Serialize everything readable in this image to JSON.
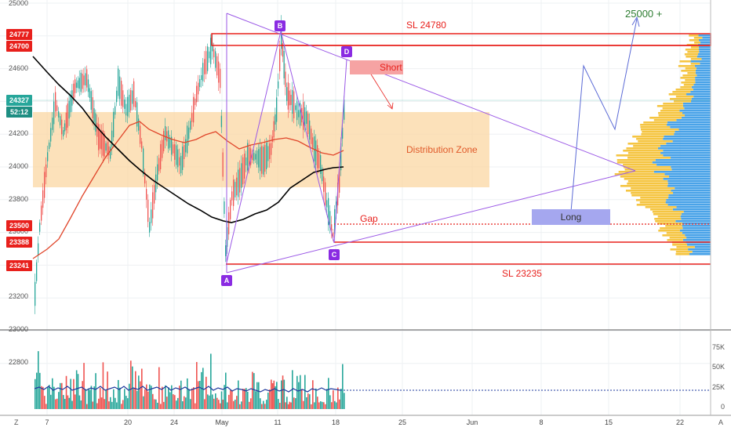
{
  "chart_data": {
    "type": "candlestick",
    "price_axis": {
      "ticks": [
        "25000",
        "24800",
        "24600",
        "24400",
        "24200",
        "24000",
        "23800",
        "23600",
        "23400",
        "23200",
        "23000",
        "22800"
      ],
      "range": [
        22800,
        25000
      ]
    },
    "price_tags": [
      {
        "value": "24777",
        "color": "red"
      },
      {
        "value": "24700",
        "color": "red"
      },
      {
        "value": "24327",
        "color": "teal"
      },
      {
        "value": "52:12",
        "color": "teal"
      },
      {
        "value": "23500",
        "color": "red"
      },
      {
        "value": "23388",
        "color": "red"
      },
      {
        "value": "23241",
        "color": "red"
      }
    ],
    "volume_axis": {
      "ticks": [
        "75K",
        "50K",
        "25K",
        "0"
      ]
    },
    "x_ticks": [
      "7",
      "20",
      "24",
      "May",
      "11",
      "18",
      "25",
      "Jun",
      "8",
      "15",
      "22"
    ],
    "annotations": {
      "sl_top": "SL 24780",
      "sl_bottom": "SL 23235",
      "target": "25000 +",
      "zone": "Distribution Zone",
      "short": "Short",
      "long": "Long",
      "gap": "Gap",
      "points": [
        "A",
        "B",
        "C",
        "D"
      ]
    },
    "colors": {
      "up": "#26a69a",
      "down": "#ef5350",
      "ma_red": "#e0452a",
      "ma_black": "#000000",
      "pattern": "#9b59e6",
      "zone": "#fbd7a3",
      "stop_lines": "#e8201c",
      "target": "#2e7d32",
      "profile_blue": "#4aa3e8",
      "profile_yellow": "#f5c542"
    }
  },
  "toolbar": {
    "z_label": "Z",
    "a_label": "A"
  }
}
